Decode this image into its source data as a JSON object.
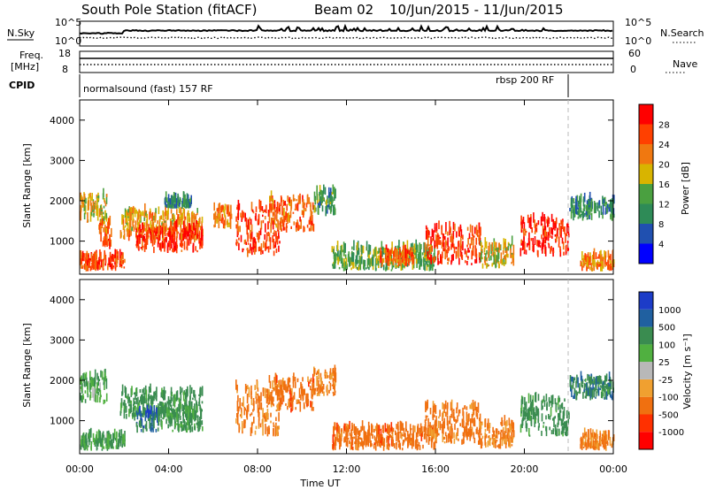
{
  "header": {
    "station": "South Pole Station (fitACF)",
    "beam": "Beam 02",
    "dates": "10/Jun/2015 - 11/Jun/2015"
  },
  "top_panels": {
    "nsky_label": "N.Sky",
    "nsearch_label": "N.Search",
    "noise_ticks_left": [
      "10^5",
      "10^0"
    ],
    "noise_ticks_right": [
      "10^5",
      "10^0"
    ],
    "freq_label_1": "Freq.",
    "freq_label_2": "[MHz]",
    "freq_ticks": [
      "18",
      "8"
    ],
    "nave_label": "Nave",
    "nave_ticks": [
      "60",
      "0"
    ],
    "cpid_label": "CPID",
    "cpid_1": "normalsound (fast) 157 RF",
    "cpid_2": "rbsp 200 RF"
  },
  "axes": {
    "ylabel": "Slant Range [km]",
    "xlabel": "Time UT",
    "y_ticks": [
      "4000",
      "3000",
      "2000",
      "1000"
    ],
    "x_ticks": [
      "00:00",
      "04:00",
      "08:00",
      "12:00",
      "16:00",
      "20:00",
      "00:00"
    ]
  },
  "power_scale": {
    "label": "Power [dB]",
    "ticks": [
      "28",
      "24",
      "20",
      "16",
      "12",
      "8",
      "4"
    ],
    "colors": [
      "#0000ff",
      "#2050b0",
      "#2e8b57",
      "#4aa040",
      "#d8b400",
      "#f07810",
      "#ff4000",
      "#ff0000"
    ]
  },
  "velocity_scale": {
    "label": "Velocity [m s⁻¹]",
    "ticks": [
      "1000",
      "500",
      "100",
      "25",
      "-25",
      "-100",
      "-500",
      "-1000"
    ],
    "colors": [
      "#1c3cc8",
      "#2060a0",
      "#3a8c50",
      "#50b040",
      "#b8b8b8",
      "#f0a030",
      "#f07010",
      "#ff3000",
      "#ff0000"
    ]
  },
  "chart_data": [
    {
      "type": "heatmap",
      "title": "Power [dB]",
      "xlabel": "Time UT",
      "ylabel": "Slant Range [km]",
      "xlim_hours": [
        0,
        24
      ],
      "ylim": [
        180,
        4500
      ],
      "color_range": [
        0,
        32
      ],
      "patches": [
        {
          "t0": 0.0,
          "t1": 1.2,
          "r0": 1400,
          "r1": 2100,
          "v": 18
        },
        {
          "t0": 0.0,
          "t1": 2.0,
          "r0": 250,
          "r1": 600,
          "v": 26
        },
        {
          "t0": 0.8,
          "t1": 1.4,
          "r0": 800,
          "r1": 1400,
          "v": 24
        },
        {
          "t0": 1.8,
          "t1": 5.5,
          "r0": 1000,
          "r1": 1700,
          "v": 20
        },
        {
          "t0": 2.5,
          "t1": 5.5,
          "r0": 700,
          "r1": 1300,
          "v": 28
        },
        {
          "t0": 3.8,
          "t1": 5.0,
          "r0": 1800,
          "r1": 2000,
          "v": 10
        },
        {
          "t0": 6.0,
          "t1": 6.8,
          "r0": 1300,
          "r1": 1800,
          "v": 22
        },
        {
          "t0": 7.0,
          "t1": 9.0,
          "r0": 600,
          "r1": 1800,
          "v": 26
        },
        {
          "t0": 8.5,
          "t1": 10.5,
          "r0": 1200,
          "r1": 2000,
          "v": 24
        },
        {
          "t0": 10.5,
          "t1": 11.5,
          "r0": 1600,
          "r1": 2200,
          "v": 12
        },
        {
          "t0": 11.3,
          "t1": 16.0,
          "r0": 250,
          "r1": 800,
          "v": 14
        },
        {
          "t0": 13.5,
          "t1": 15.0,
          "r0": 350,
          "r1": 700,
          "v": 24
        },
        {
          "t0": 15.5,
          "t1": 18.0,
          "r0": 400,
          "r1": 1300,
          "v": 26
        },
        {
          "t0": 18.0,
          "t1": 19.5,
          "r0": 300,
          "r1": 900,
          "v": 18
        },
        {
          "t0": 19.8,
          "t1": 22.0,
          "r0": 600,
          "r1": 1500,
          "v": 28
        },
        {
          "t0": 22.0,
          "t1": 24.0,
          "r0": 1500,
          "r1": 2000,
          "v": 10
        },
        {
          "t0": 22.5,
          "t1": 24.0,
          "r0": 250,
          "r1": 600,
          "v": 22
        }
      ]
    },
    {
      "type": "heatmap",
      "title": "Velocity [m s⁻¹]",
      "xlabel": "Time UT",
      "ylabel": "Slant Range [km]",
      "xlim_hours": [
        0,
        24
      ],
      "ylim": [
        180,
        4500
      ],
      "color_range": [
        -1000,
        1000
      ],
      "patches": [
        {
          "t0": 0.0,
          "t1": 1.2,
          "r0": 1400,
          "r1": 2100,
          "v": 80
        },
        {
          "t0": 0.0,
          "t1": 2.0,
          "r0": 250,
          "r1": 600,
          "v": 120
        },
        {
          "t0": 1.8,
          "t1": 5.5,
          "r0": 1000,
          "r1": 1700,
          "v": 200
        },
        {
          "t0": 2.5,
          "t1": 3.5,
          "r0": 700,
          "r1": 1200,
          "v": 700
        },
        {
          "t0": 3.5,
          "t1": 5.5,
          "r0": 700,
          "r1": 1300,
          "v": 150
        },
        {
          "t0": 7.0,
          "t1": 9.0,
          "r0": 600,
          "r1": 1800,
          "v": -150
        },
        {
          "t0": 8.5,
          "t1": 10.5,
          "r0": 1200,
          "r1": 2000,
          "v": -300
        },
        {
          "t0": 10.5,
          "t1": 11.5,
          "r0": 1600,
          "r1": 2200,
          "v": -200
        },
        {
          "t0": 11.3,
          "t1": 16.0,
          "r0": 250,
          "r1": 800,
          "v": -300
        },
        {
          "t0": 15.5,
          "t1": 18.0,
          "r0": 400,
          "r1": 1300,
          "v": -200
        },
        {
          "t0": 18.0,
          "t1": 19.5,
          "r0": 300,
          "r1": 900,
          "v": -150
        },
        {
          "t0": 19.8,
          "t1": 22.0,
          "r0": 600,
          "r1": 1500,
          "v": 250
        },
        {
          "t0": 22.0,
          "t1": 24.0,
          "r0": 1500,
          "r1": 2000,
          "v": 400
        },
        {
          "t0": 22.5,
          "t1": 24.0,
          "r0": 250,
          "r1": 600,
          "v": -150
        }
      ]
    }
  ]
}
